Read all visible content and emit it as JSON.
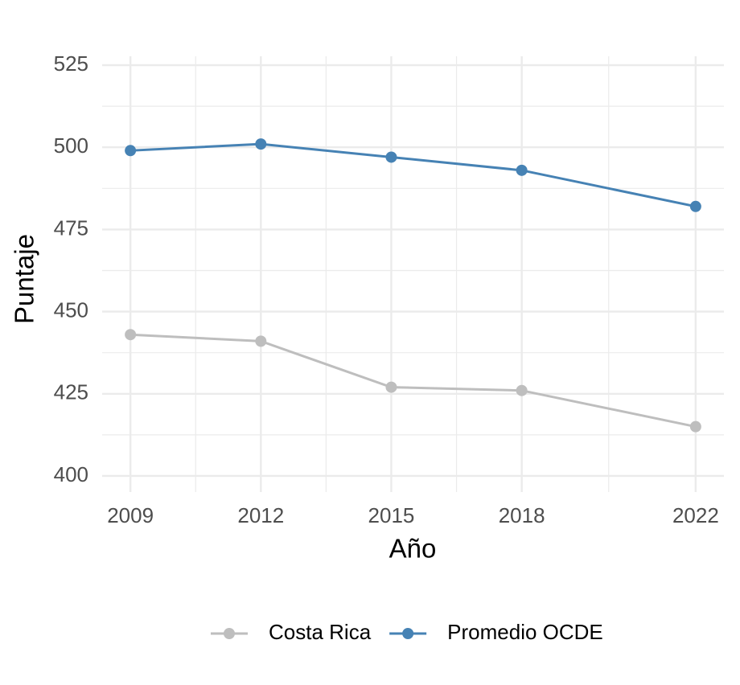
{
  "chart_data": {
    "type": "line",
    "x_label": "Año",
    "y_label": "Puntaje",
    "x": [
      2009,
      2012,
      2015,
      2018,
      2022
    ],
    "series": [
      {
        "name": "Costa Rica",
        "color": "#bebebe",
        "values": [
          443,
          441,
          427,
          426,
          415
        ]
      },
      {
        "name": "Promedio OCDE",
        "color": "#4682b4",
        "values": [
          499,
          501,
          497,
          493,
          482
        ]
      }
    ],
    "xlim": [
      2008.35,
      2022.65
    ],
    "ylim": [
      395.1,
      527.7
    ],
    "xticks": [
      2009,
      2012,
      2015,
      2018,
      2022
    ],
    "yticks": [
      400,
      425,
      450,
      475,
      500,
      525
    ],
    "grid": true,
    "legend_position": "bottom"
  }
}
